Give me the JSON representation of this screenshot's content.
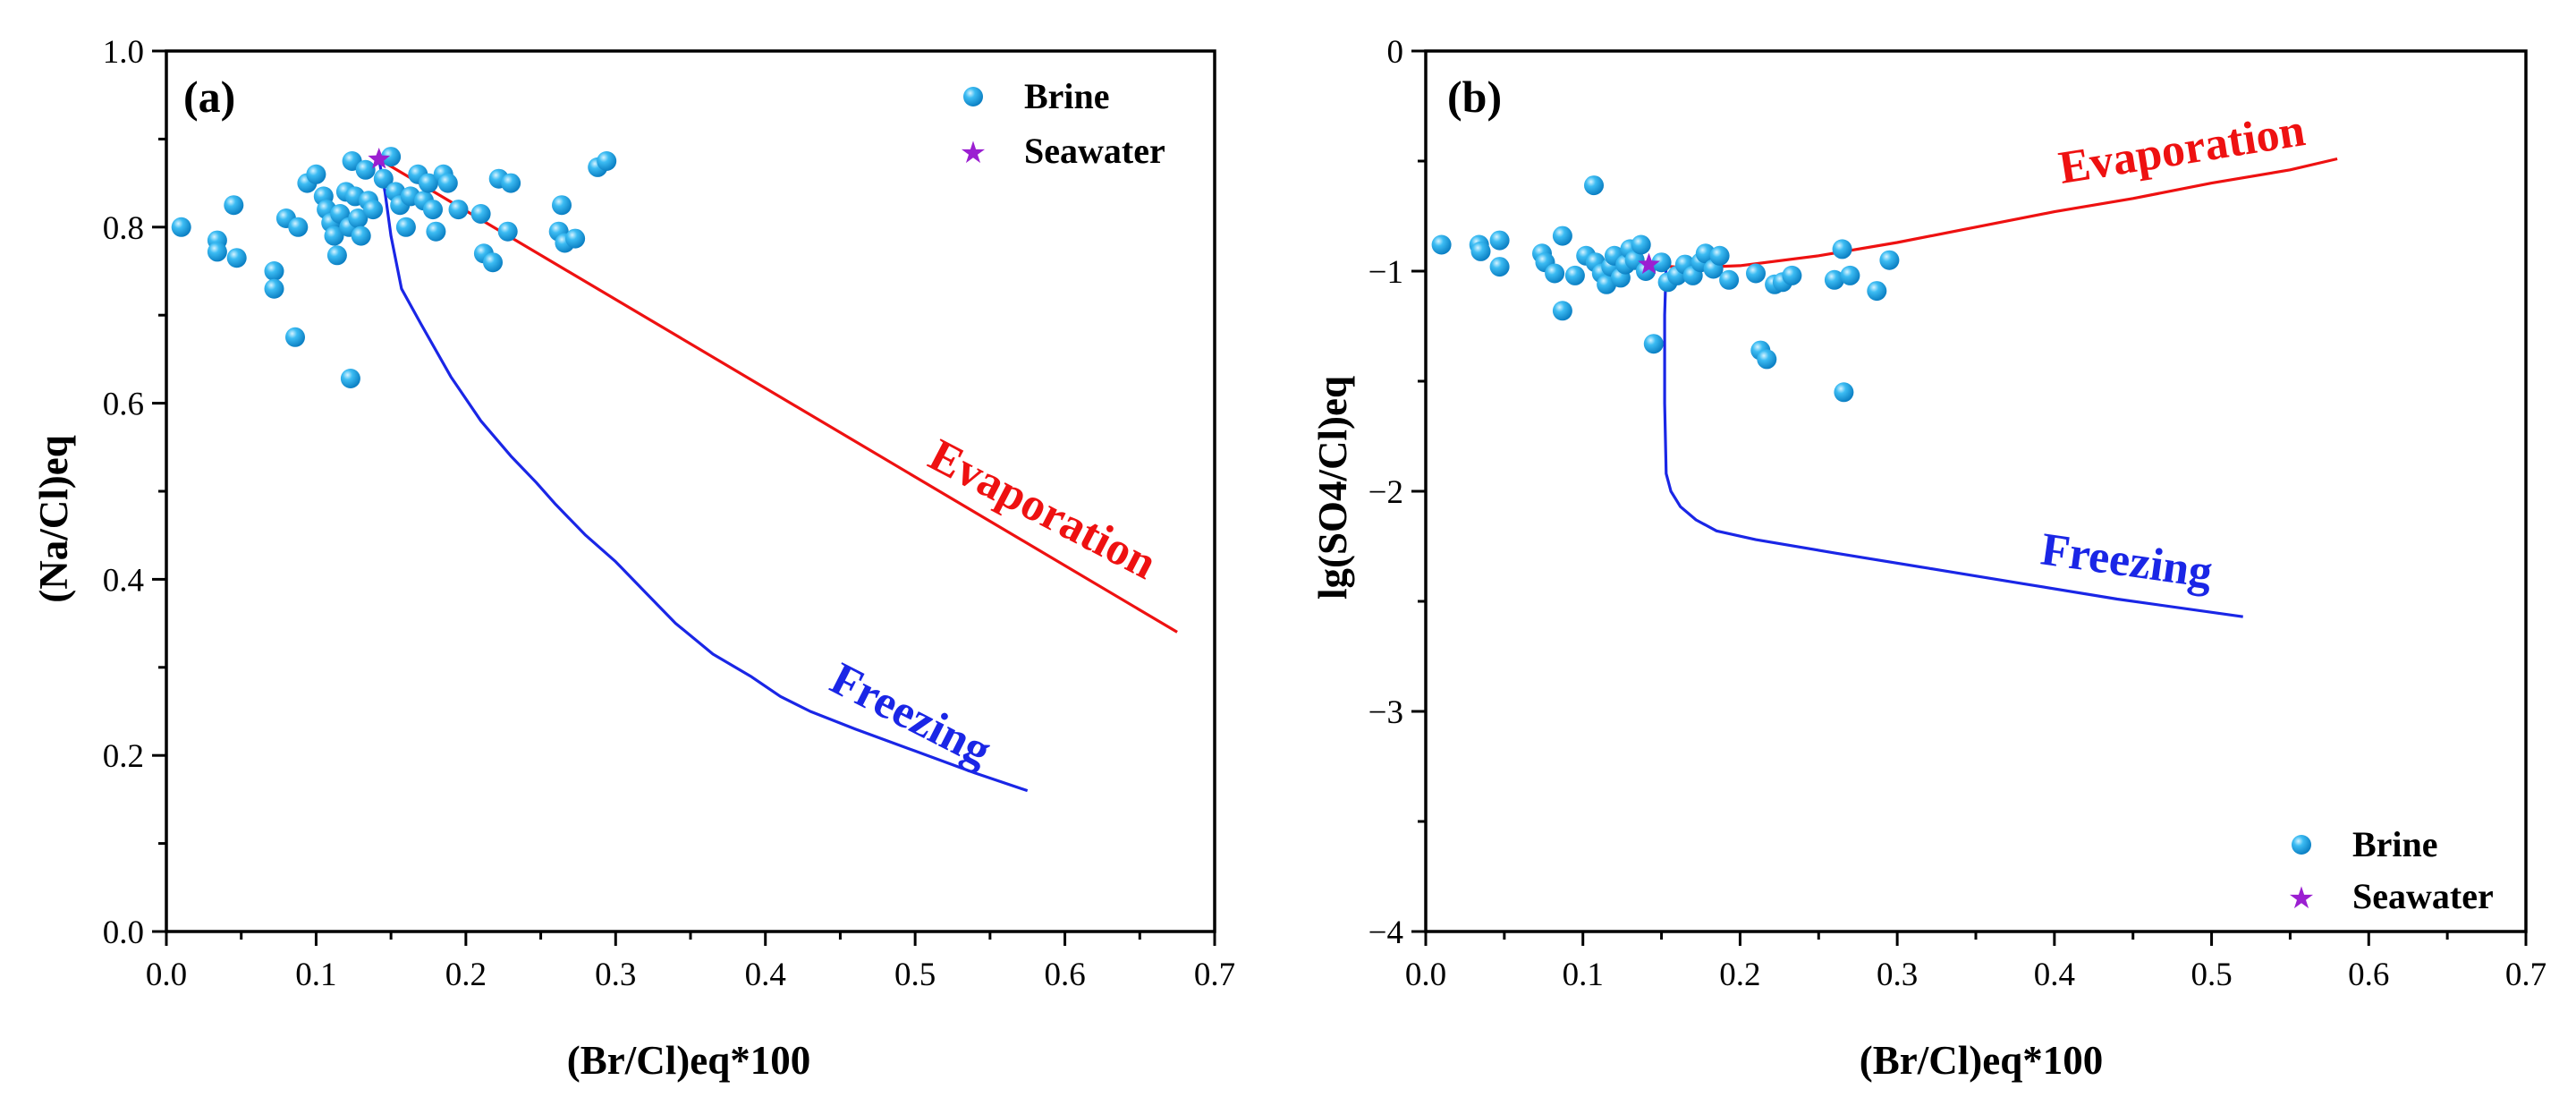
{
  "colors": {
    "brine": "#21a8ea",
    "seawater": "#9b1fd1",
    "evaporation": "#ee1111",
    "freezing": "#1a26e6",
    "axis": "#000000"
  },
  "chart_data": [
    {
      "type": "scatter",
      "panel_label": "(a)",
      "xlabel": "(Br/Cl)eq*100",
      "ylabel": "(Na/Cl)eq",
      "xlim": [
        0.0,
        0.7
      ],
      "ylim": [
        0.0,
        1.0
      ],
      "xticks": [
        "0.0",
        "0.1",
        "0.2",
        "0.3",
        "0.4",
        "0.5",
        "0.6",
        "0.7"
      ],
      "yticks": [
        "0.0",
        "0.2",
        "0.4",
        "0.6",
        "0.8",
        "1.0"
      ],
      "legend_position": "top-right",
      "legend": {
        "brine": "Brine",
        "seawater": "Seawater"
      },
      "brine": [
        [
          0.01,
          0.8
        ],
        [
          0.034,
          0.785
        ],
        [
          0.034,
          0.772
        ],
        [
          0.045,
          0.825
        ],
        [
          0.047,
          0.765
        ],
        [
          0.072,
          0.75
        ],
        [
          0.072,
          0.73
        ],
        [
          0.08,
          0.81
        ],
        [
          0.086,
          0.675
        ],
        [
          0.088,
          0.8
        ],
        [
          0.094,
          0.85
        ],
        [
          0.1,
          0.86
        ],
        [
          0.105,
          0.835
        ],
        [
          0.107,
          0.82
        ],
        [
          0.11,
          0.805
        ],
        [
          0.112,
          0.79
        ],
        [
          0.114,
          0.768
        ],
        [
          0.116,
          0.815
        ],
        [
          0.12,
          0.84
        ],
        [
          0.122,
          0.8
        ],
        [
          0.123,
          0.628
        ],
        [
          0.124,
          0.875
        ],
        [
          0.126,
          0.835
        ],
        [
          0.128,
          0.81
        ],
        [
          0.13,
          0.79
        ],
        [
          0.133,
          0.865
        ],
        [
          0.135,
          0.83
        ],
        [
          0.138,
          0.82
        ],
        [
          0.145,
          0.855
        ],
        [
          0.15,
          0.88
        ],
        [
          0.153,
          0.84
        ],
        [
          0.156,
          0.825
        ],
        [
          0.16,
          0.8
        ],
        [
          0.163,
          0.835
        ],
        [
          0.168,
          0.86
        ],
        [
          0.172,
          0.83
        ],
        [
          0.175,
          0.85
        ],
        [
          0.178,
          0.82
        ],
        [
          0.18,
          0.795
        ],
        [
          0.185,
          0.86
        ],
        [
          0.188,
          0.85
        ],
        [
          0.195,
          0.82
        ],
        [
          0.21,
          0.815
        ],
        [
          0.212,
          0.77
        ],
        [
          0.218,
          0.76
        ],
        [
          0.222,
          0.855
        ],
        [
          0.228,
          0.795
        ],
        [
          0.23,
          0.85
        ],
        [
          0.262,
          0.795
        ],
        [
          0.264,
          0.825
        ],
        [
          0.266,
          0.782
        ],
        [
          0.273,
          0.787
        ],
        [
          0.288,
          0.868
        ],
        [
          0.294,
          0.875
        ]
      ],
      "seawater": [
        0.142,
        0.877
      ],
      "evaporation": {
        "label": "Evaporation",
        "x": [
          0.142,
          0.675
        ],
        "y": [
          0.877,
          0.34
        ]
      },
      "freezing": {
        "label": "Freezing",
        "x": [
          0.142,
          0.146,
          0.15,
          0.157,
          0.17,
          0.19,
          0.21,
          0.23,
          0.247,
          0.26,
          0.28,
          0.3,
          0.32,
          0.34,
          0.365,
          0.39,
          0.41,
          0.43,
          0.46,
          0.5,
          0.54,
          0.575
        ],
        "y": [
          0.877,
          0.84,
          0.79,
          0.73,
          0.69,
          0.63,
          0.58,
          0.54,
          0.51,
          0.485,
          0.45,
          0.42,
          0.385,
          0.35,
          0.315,
          0.29,
          0.267,
          0.25,
          0.23,
          0.205,
          0.18,
          0.16
        ]
      }
    },
    {
      "type": "scatter",
      "panel_label": "(b)",
      "xlabel": "(Br/Cl)eq*100",
      "ylabel": "lg(SO4/Cl)eq",
      "xlim": [
        0.0,
        0.7
      ],
      "ylim": [
        -4,
        0
      ],
      "xticks": [
        "0.0",
        "0.1",
        "0.2",
        "0.3",
        "0.4",
        "0.5",
        "0.6",
        "0.7"
      ],
      "yticks": [
        "−4",
        "−3",
        "−2",
        "−1",
        "0"
      ],
      "legend_position": "bottom-right",
      "legend": {
        "brine": "Brine",
        "seawater": "Seawater"
      },
      "brine": [
        [
          0.01,
          -0.88
        ],
        [
          0.034,
          -0.88
        ],
        [
          0.035,
          -0.91
        ],
        [
          0.047,
          -0.86
        ],
        [
          0.047,
          -0.98
        ],
        [
          0.074,
          -0.92
        ],
        [
          0.076,
          -0.96
        ],
        [
          0.082,
          -1.01
        ],
        [
          0.087,
          -0.84
        ],
        [
          0.087,
          -1.18
        ],
        [
          0.095,
          -1.02
        ],
        [
          0.102,
          -0.93
        ],
        [
          0.107,
          -0.61
        ],
        [
          0.108,
          -0.96
        ],
        [
          0.112,
          -1.01
        ],
        [
          0.115,
          -1.06
        ],
        [
          0.118,
          -0.98
        ],
        [
          0.12,
          -0.93
        ],
        [
          0.124,
          -1.03
        ],
        [
          0.127,
          -0.97
        ],
        [
          0.13,
          -0.9
        ],
        [
          0.133,
          -0.95
        ],
        [
          0.137,
          -0.88
        ],
        [
          0.14,
          -1.0
        ],
        [
          0.145,
          -1.33
        ],
        [
          0.15,
          -0.96
        ],
        [
          0.154,
          -1.05
        ],
        [
          0.16,
          -1.02
        ],
        [
          0.165,
          -0.97
        ],
        [
          0.17,
          -1.02
        ],
        [
          0.175,
          -0.96
        ],
        [
          0.178,
          -0.92
        ],
        [
          0.183,
          -0.99
        ],
        [
          0.187,
          -0.93
        ],
        [
          0.193,
          -1.04
        ],
        [
          0.21,
          -1.01
        ],
        [
          0.213,
          -1.36
        ],
        [
          0.217,
          -1.4
        ],
        [
          0.222,
          -1.06
        ],
        [
          0.227,
          -1.05
        ],
        [
          0.233,
          -1.02
        ],
        [
          0.26,
          -1.04
        ],
        [
          0.265,
          -0.9
        ],
        [
          0.266,
          -1.55
        ],
        [
          0.27,
          -1.02
        ],
        [
          0.287,
          -1.09
        ],
        [
          0.295,
          -0.95
        ]
      ],
      "seawater": [
        0.142,
        -0.97
      ],
      "evaporation": {
        "label": "Evaporation",
        "x": [
          0.142,
          0.165,
          0.2,
          0.25,
          0.3,
          0.35,
          0.4,
          0.45,
          0.5,
          0.55,
          0.58
        ],
        "y": [
          -0.97,
          -0.985,
          -0.975,
          -0.93,
          -0.87,
          -0.8,
          -0.73,
          -0.67,
          -0.6,
          -0.54,
          -0.49
        ]
      },
      "freezing": {
        "label": "Freezing",
        "x": [
          0.153,
          0.152,
          0.152,
          0.153,
          0.156,
          0.162,
          0.172,
          0.185,
          0.21,
          0.26,
          0.32,
          0.38,
          0.44,
          0.52
        ],
        "y": [
          -0.97,
          -1.2,
          -1.6,
          -1.92,
          -2.0,
          -2.07,
          -2.13,
          -2.18,
          -2.22,
          -2.28,
          -2.35,
          -2.42,
          -2.49,
          -2.57
        ]
      }
    }
  ]
}
